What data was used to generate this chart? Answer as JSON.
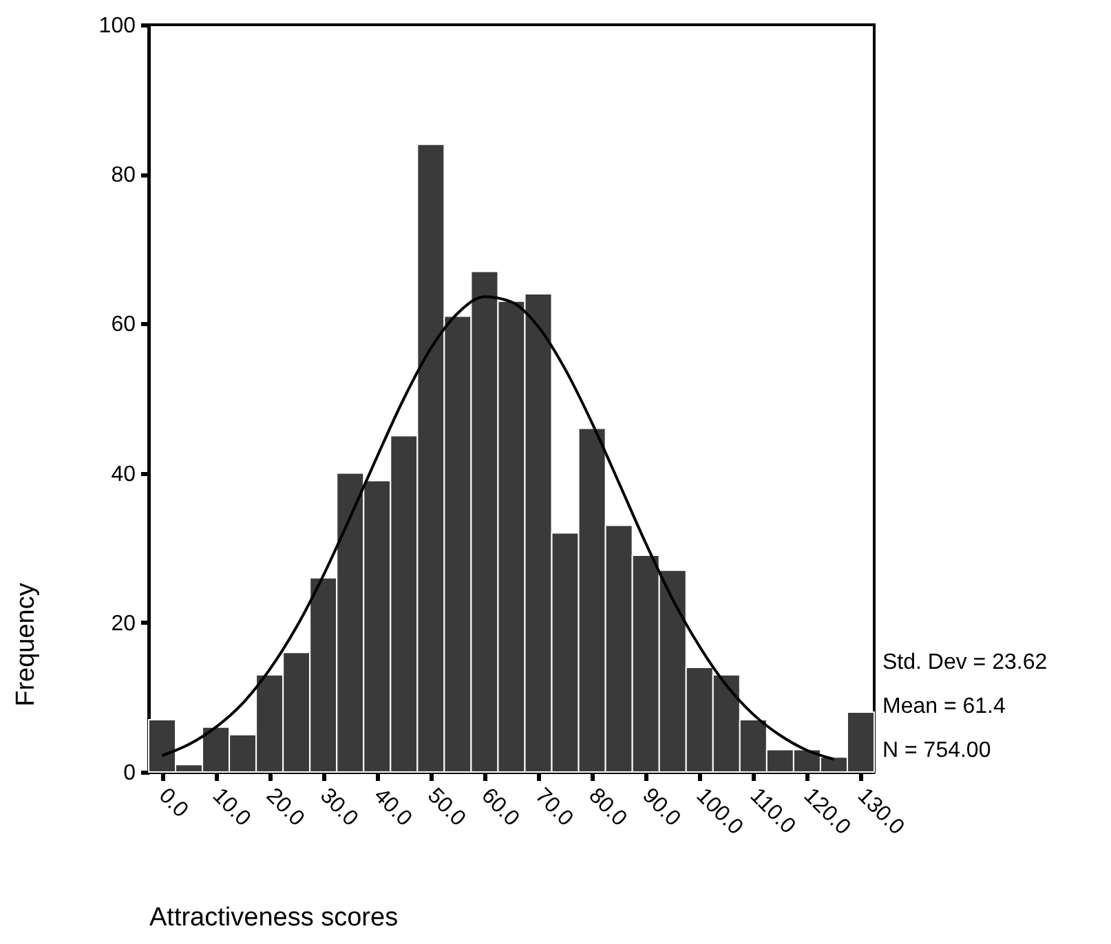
{
  "chart_data": {
    "type": "histogram",
    "xlabel": "Attractiveness scores",
    "ylabel": "Frequency",
    "bins": [
      -2.5,
      2.5,
      7.5,
      12.5,
      17.5,
      22.5,
      27.5,
      32.5,
      37.5,
      42.5,
      47.5,
      52.5,
      57.5,
      62.5,
      67.5,
      72.5,
      77.5,
      82.5,
      87.5,
      92.5,
      97.5,
      102.5,
      107.5,
      112.5,
      117.5,
      122.5,
      127.5,
      132.5
    ],
    "series": [
      {
        "color": "#3a3a3a",
        "values": [
          7,
          1,
          6,
          5,
          13,
          16,
          26,
          40,
          39,
          45,
          84,
          61,
          67,
          63,
          64,
          32,
          46,
          33,
          29,
          27,
          14,
          13,
          7,
          3,
          3,
          2,
          8
        ]
      },
      {
        "type": "line",
        "color": "#000000",
        "x": [
          0,
          5,
          10,
          15,
          20,
          25,
          30,
          35,
          40,
          45,
          50,
          55,
          60,
          65,
          70,
          75,
          80,
          85,
          90,
          95,
          100,
          105,
          110,
          115,
          120,
          125
        ],
        "values": [
          2.2,
          3.7,
          6.0,
          9.2,
          13.7,
          19.4,
          26.3,
          34.1,
          42.2,
          50.0,
          56.7,
          61.4,
          63.6,
          62.9,
          59.6,
          53.9,
          46.7,
          38.7,
          30.6,
          23.1,
          16.8,
          11.6,
          7.7,
          4.9,
          2.9,
          1.7
        ]
      }
    ],
    "xlim": [
      -2.5,
      132.5
    ],
    "xticks": [
      {
        "value": 0,
        "label": "0.0"
      },
      {
        "value": 10,
        "label": "10.0"
      },
      {
        "value": 20,
        "label": "20.0"
      },
      {
        "value": 30,
        "label": "30.0"
      },
      {
        "value": 40,
        "label": "40.0"
      },
      {
        "value": 50,
        "label": "50.0"
      },
      {
        "value": 60,
        "label": "60.0"
      },
      {
        "value": 70,
        "label": "70.0"
      },
      {
        "value": 80,
        "label": "80.0"
      },
      {
        "value": 90,
        "label": "90.0"
      },
      {
        "value": 100,
        "label": "100.0"
      },
      {
        "value": 110,
        "label": "110.0"
      },
      {
        "value": 120,
        "label": "120.0"
      },
      {
        "value": 130,
        "label": "130.0"
      }
    ],
    "ylim": [
      0,
      100
    ],
    "yticks": [
      0,
      20,
      40,
      60,
      80,
      100
    ],
    "grid": false,
    "annotations": [
      "Std. Dev = 23.62",
      "Mean = 61.4",
      "N = 754.00"
    ]
  }
}
